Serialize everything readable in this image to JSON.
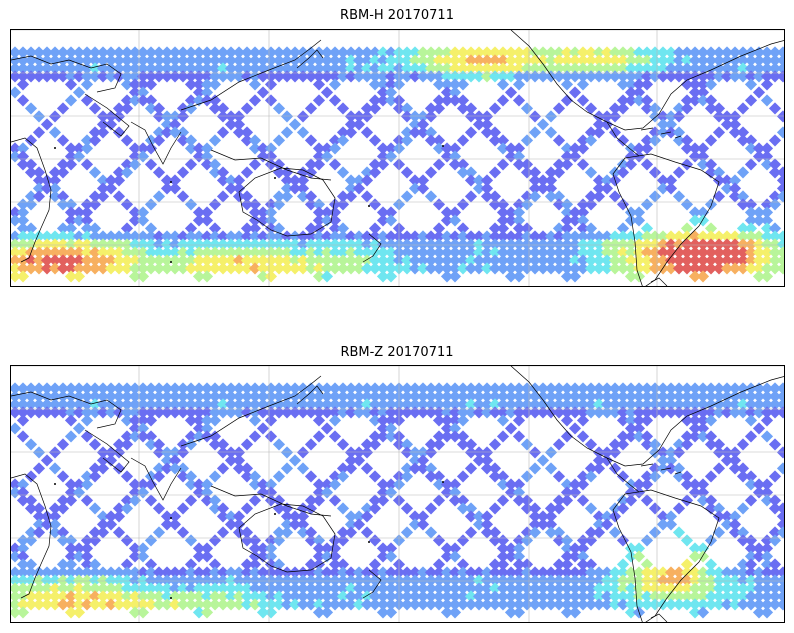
{
  "figure": {
    "panels": [
      {
        "id": "rbm-h",
        "title": "RBM-H 20170711",
        "hot_zones": [
          {
            "name": "south-atlantic-south-america",
            "intensity": 1.0
          },
          {
            "name": "southern-ocean-west",
            "intensity": 0.8
          },
          {
            "name": "southern-ocean-central",
            "intensity": 0.55
          },
          {
            "name": "north-pacific-east",
            "intensity": 0.6
          },
          {
            "name": "north-pacific-central",
            "intensity": 0.45
          }
        ]
      },
      {
        "id": "rbm-z",
        "title": "RBM-Z 20170711",
        "hot_zones": [
          {
            "name": "south-america-east",
            "intensity": 0.75
          },
          {
            "name": "southern-ocean-west",
            "intensity": 0.45
          },
          {
            "name": "south-atlantic",
            "intensity": 0.4
          }
        ]
      }
    ],
    "colormap": [
      "#6a6ef2",
      "#6fa2f7",
      "#6fe6f0",
      "#b8f59a",
      "#f5f06a",
      "#f7b060",
      "#e2605e"
    ]
  }
}
